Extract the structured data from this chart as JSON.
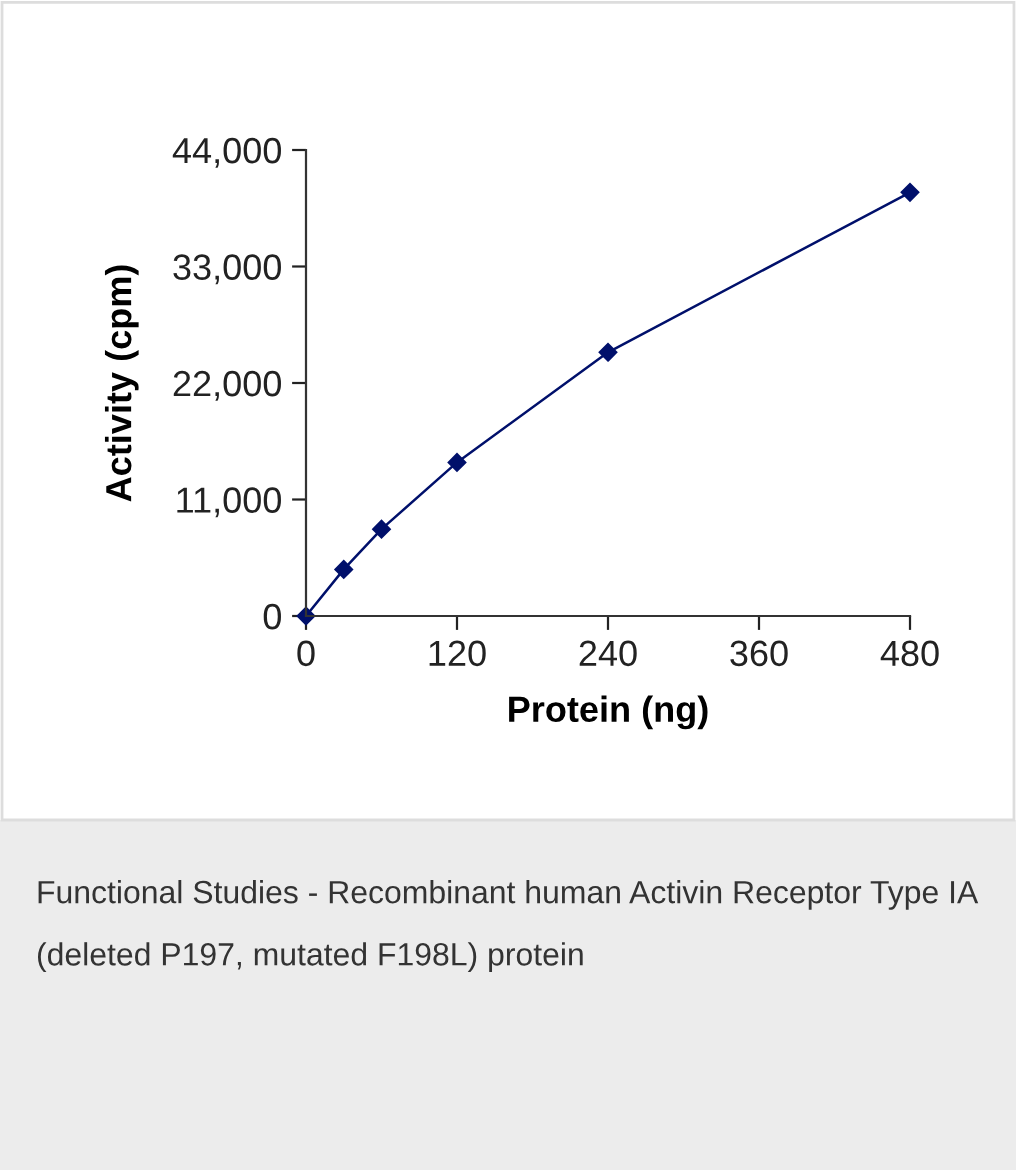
{
  "chart_data": {
    "type": "line",
    "xlabel": "Protein (ng)",
    "ylabel": "Activity (cpm)",
    "x": [
      0,
      30,
      60,
      120,
      240,
      480
    ],
    "series": [
      {
        "color": "#00106b",
        "values": [
          0,
          4400,
          8200,
          14500,
          24900,
          40000
        ]
      }
    ],
    "xlim": [
      0,
      480
    ],
    "xticks": [
      0,
      120,
      240,
      360,
      480
    ],
    "ylim": [
      0,
      44000
    ],
    "yticks": [
      {
        "value": 0,
        "label": "0"
      },
      {
        "value": 11000,
        "label": "11,000"
      },
      {
        "value": 22000,
        "label": "22,000"
      },
      {
        "value": 33000,
        "label": "33,000"
      },
      {
        "value": 44000,
        "label": "44,000"
      }
    ],
    "marker": "diamond",
    "line_style": "solid",
    "grid": false,
    "legend": false,
    "annotations": [
      "Functional Studies - Recombinant human Activin Receptor Type IA (deleted P197, mutated F198L) protein"
    ]
  }
}
